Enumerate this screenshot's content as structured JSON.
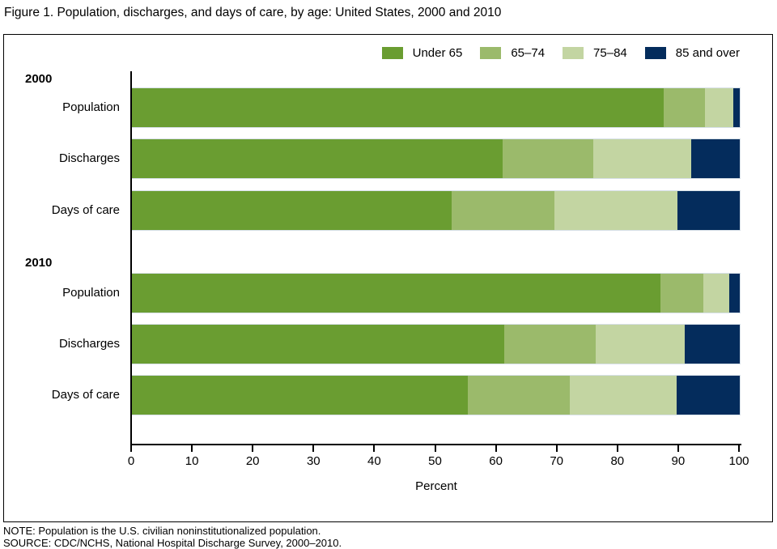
{
  "title": "Figure 1. Population, discharges, and days of care, by age: United States, 2000 and 2010",
  "legend": [
    {
      "label": "Under 65",
      "color": "#6a9d31"
    },
    {
      "label": "65–74",
      "color": "#9bba6b"
    },
    {
      "label": "75–84",
      "color": "#c3d5a2"
    },
    {
      "label": "85 and over",
      "color": "#042c5c"
    }
  ],
  "chart_data": {
    "type": "bar",
    "orientation": "horizontal",
    "stacked": true,
    "series_labels": [
      "Under 65",
      "65–74",
      "75–84",
      "85 and over"
    ],
    "series_colors": [
      "#6a9d31",
      "#9bba6b",
      "#c3d5a2",
      "#042c5c"
    ],
    "groups": [
      {
        "label": "2000",
        "rows": [
          {
            "label": "Population",
            "values": [
              87.5,
              6.8,
              4.6,
              1.1
            ]
          },
          {
            "label": "Discharges",
            "values": [
              61.0,
              14.9,
              16.1,
              8.0
            ]
          },
          {
            "label": "Days of care",
            "values": [
              52.6,
              16.9,
              20.3,
              10.2
            ]
          }
        ]
      },
      {
        "label": "2010",
        "rows": [
          {
            "label": "Population",
            "values": [
              87.0,
              7.0,
              4.3,
              1.7
            ]
          },
          {
            "label": "Discharges",
            "values": [
              61.3,
              15.0,
              14.6,
              9.1
            ]
          },
          {
            "label": "Days of care",
            "values": [
              55.2,
              16.9,
              17.5,
              10.4
            ]
          }
        ]
      }
    ],
    "xlabel": "Percent",
    "x_ticks": [
      0,
      10,
      20,
      30,
      40,
      50,
      60,
      70,
      80,
      90,
      100
    ],
    "xlim": [
      0,
      100
    ],
    "grid": false,
    "legend_position": "top-right"
  },
  "notes": {
    "note": "NOTE: Population is the U.S. civilian noninstitutionalized population.",
    "source": "SOURCE: CDC/NCHS, National Hospital Discharge Survey, 2000–2010."
  }
}
